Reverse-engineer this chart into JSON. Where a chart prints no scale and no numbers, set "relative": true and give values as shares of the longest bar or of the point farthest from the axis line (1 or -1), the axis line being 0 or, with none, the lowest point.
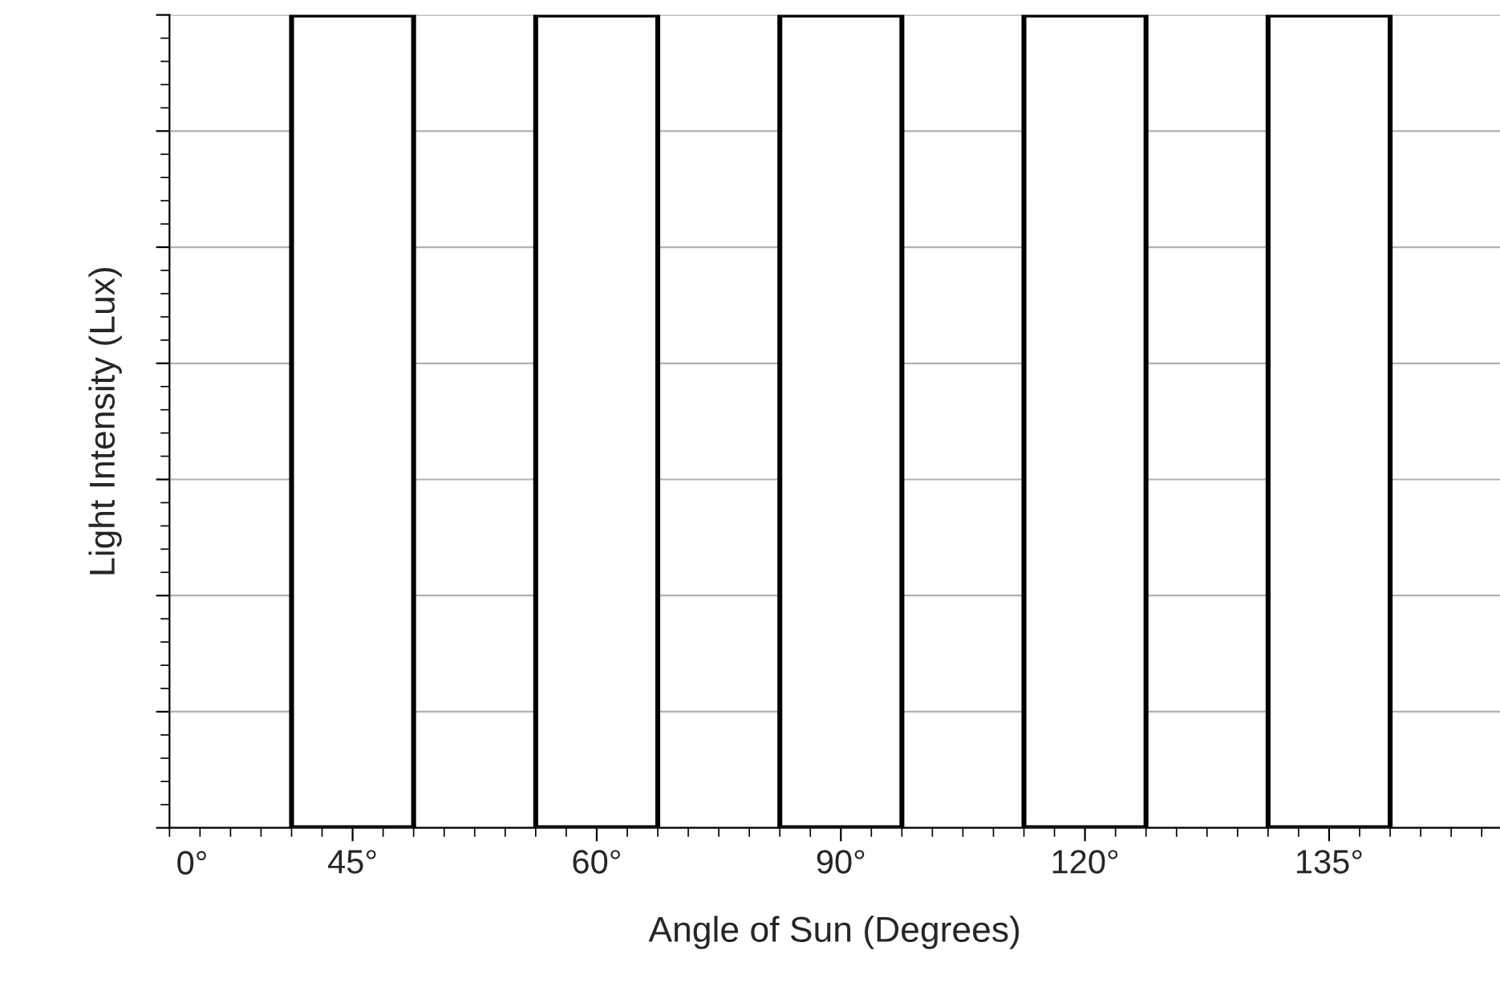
{
  "chart_data": {
    "type": "bar",
    "relative": true,
    "xlabel": "Angle of Sun (Degrees)",
    "ylabel": "Light Intensity (Lux)",
    "categories": [
      "45°",
      "60°",
      "90°",
      "120°",
      "135°"
    ],
    "values": [
      1,
      1,
      1,
      1,
      1
    ],
    "color": "#ffffff",
    "annotations": [
      "0°"
    ],
    "grid": "y"
  }
}
